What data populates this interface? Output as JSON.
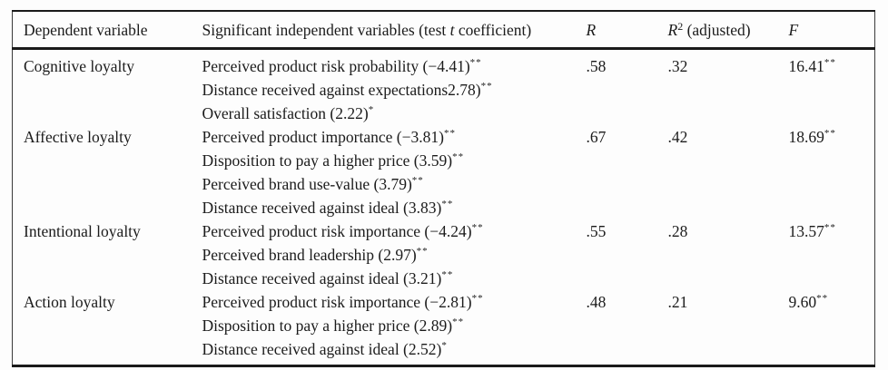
{
  "table": {
    "headers": {
      "dependent": "Dependent variable",
      "independent_pre": "Significant independent variables (test ",
      "independent_italic": "t",
      "independent_post": " coefficient)",
      "r": "R",
      "r2_base": "R",
      "r2_sup": "2",
      "r2_rest": " (adjusted)",
      "f": "F"
    },
    "rows": [
      {
        "dependent_variable": "Cognitive loyalty",
        "independent_variables": [
          {
            "text": "Perceived product risk probability (−4.41)",
            "stars": "**"
          },
          {
            "text": "Distance received against expectations2.78)",
            "stars": "**"
          },
          {
            "text": "Overall satisfaction (2.22)",
            "stars": "*"
          }
        ],
        "r": ".58",
        "r2_adjusted": ".32",
        "f": "16.41",
        "f_stars": "**"
      },
      {
        "dependent_variable": "Affective loyalty",
        "independent_variables": [
          {
            "text": "Perceived product importance (−3.81)",
            "stars": "**"
          },
          {
            "text": "Disposition to pay a higher price (3.59)",
            "stars": "**"
          },
          {
            "text": "Perceived brand use-value (3.79)",
            "stars": "**"
          },
          {
            "text": "Distance received against ideal (3.83)",
            "stars": "**"
          }
        ],
        "r": ".67",
        "r2_adjusted": ".42",
        "f": "18.69",
        "f_stars": "**"
      },
      {
        "dependent_variable": "Intentional loyalty",
        "independent_variables": [
          {
            "text": "Perceived product risk importance (−4.24)",
            "stars": "**"
          },
          {
            "text": "Perceived brand leadership (2.97)",
            "stars": "**"
          },
          {
            "text": "Distance received against ideal (3.21)",
            "stars": "**"
          }
        ],
        "r": ".55",
        "r2_adjusted": ".28",
        "f": "13.57",
        "f_stars": "**"
      },
      {
        "dependent_variable": "Action loyalty",
        "independent_variables": [
          {
            "text": "Perceived product risk importance (−2.81)",
            "stars": "**"
          },
          {
            "text": "Disposition to pay a higher price (2.89)",
            "stars": "**"
          },
          {
            "text": "Distance received against ideal (2.52)",
            "stars": "*"
          }
        ],
        "r": ".48",
        "r2_adjusted": ".21",
        "f": "9.60",
        "f_stars": "**"
      }
    ]
  }
}
